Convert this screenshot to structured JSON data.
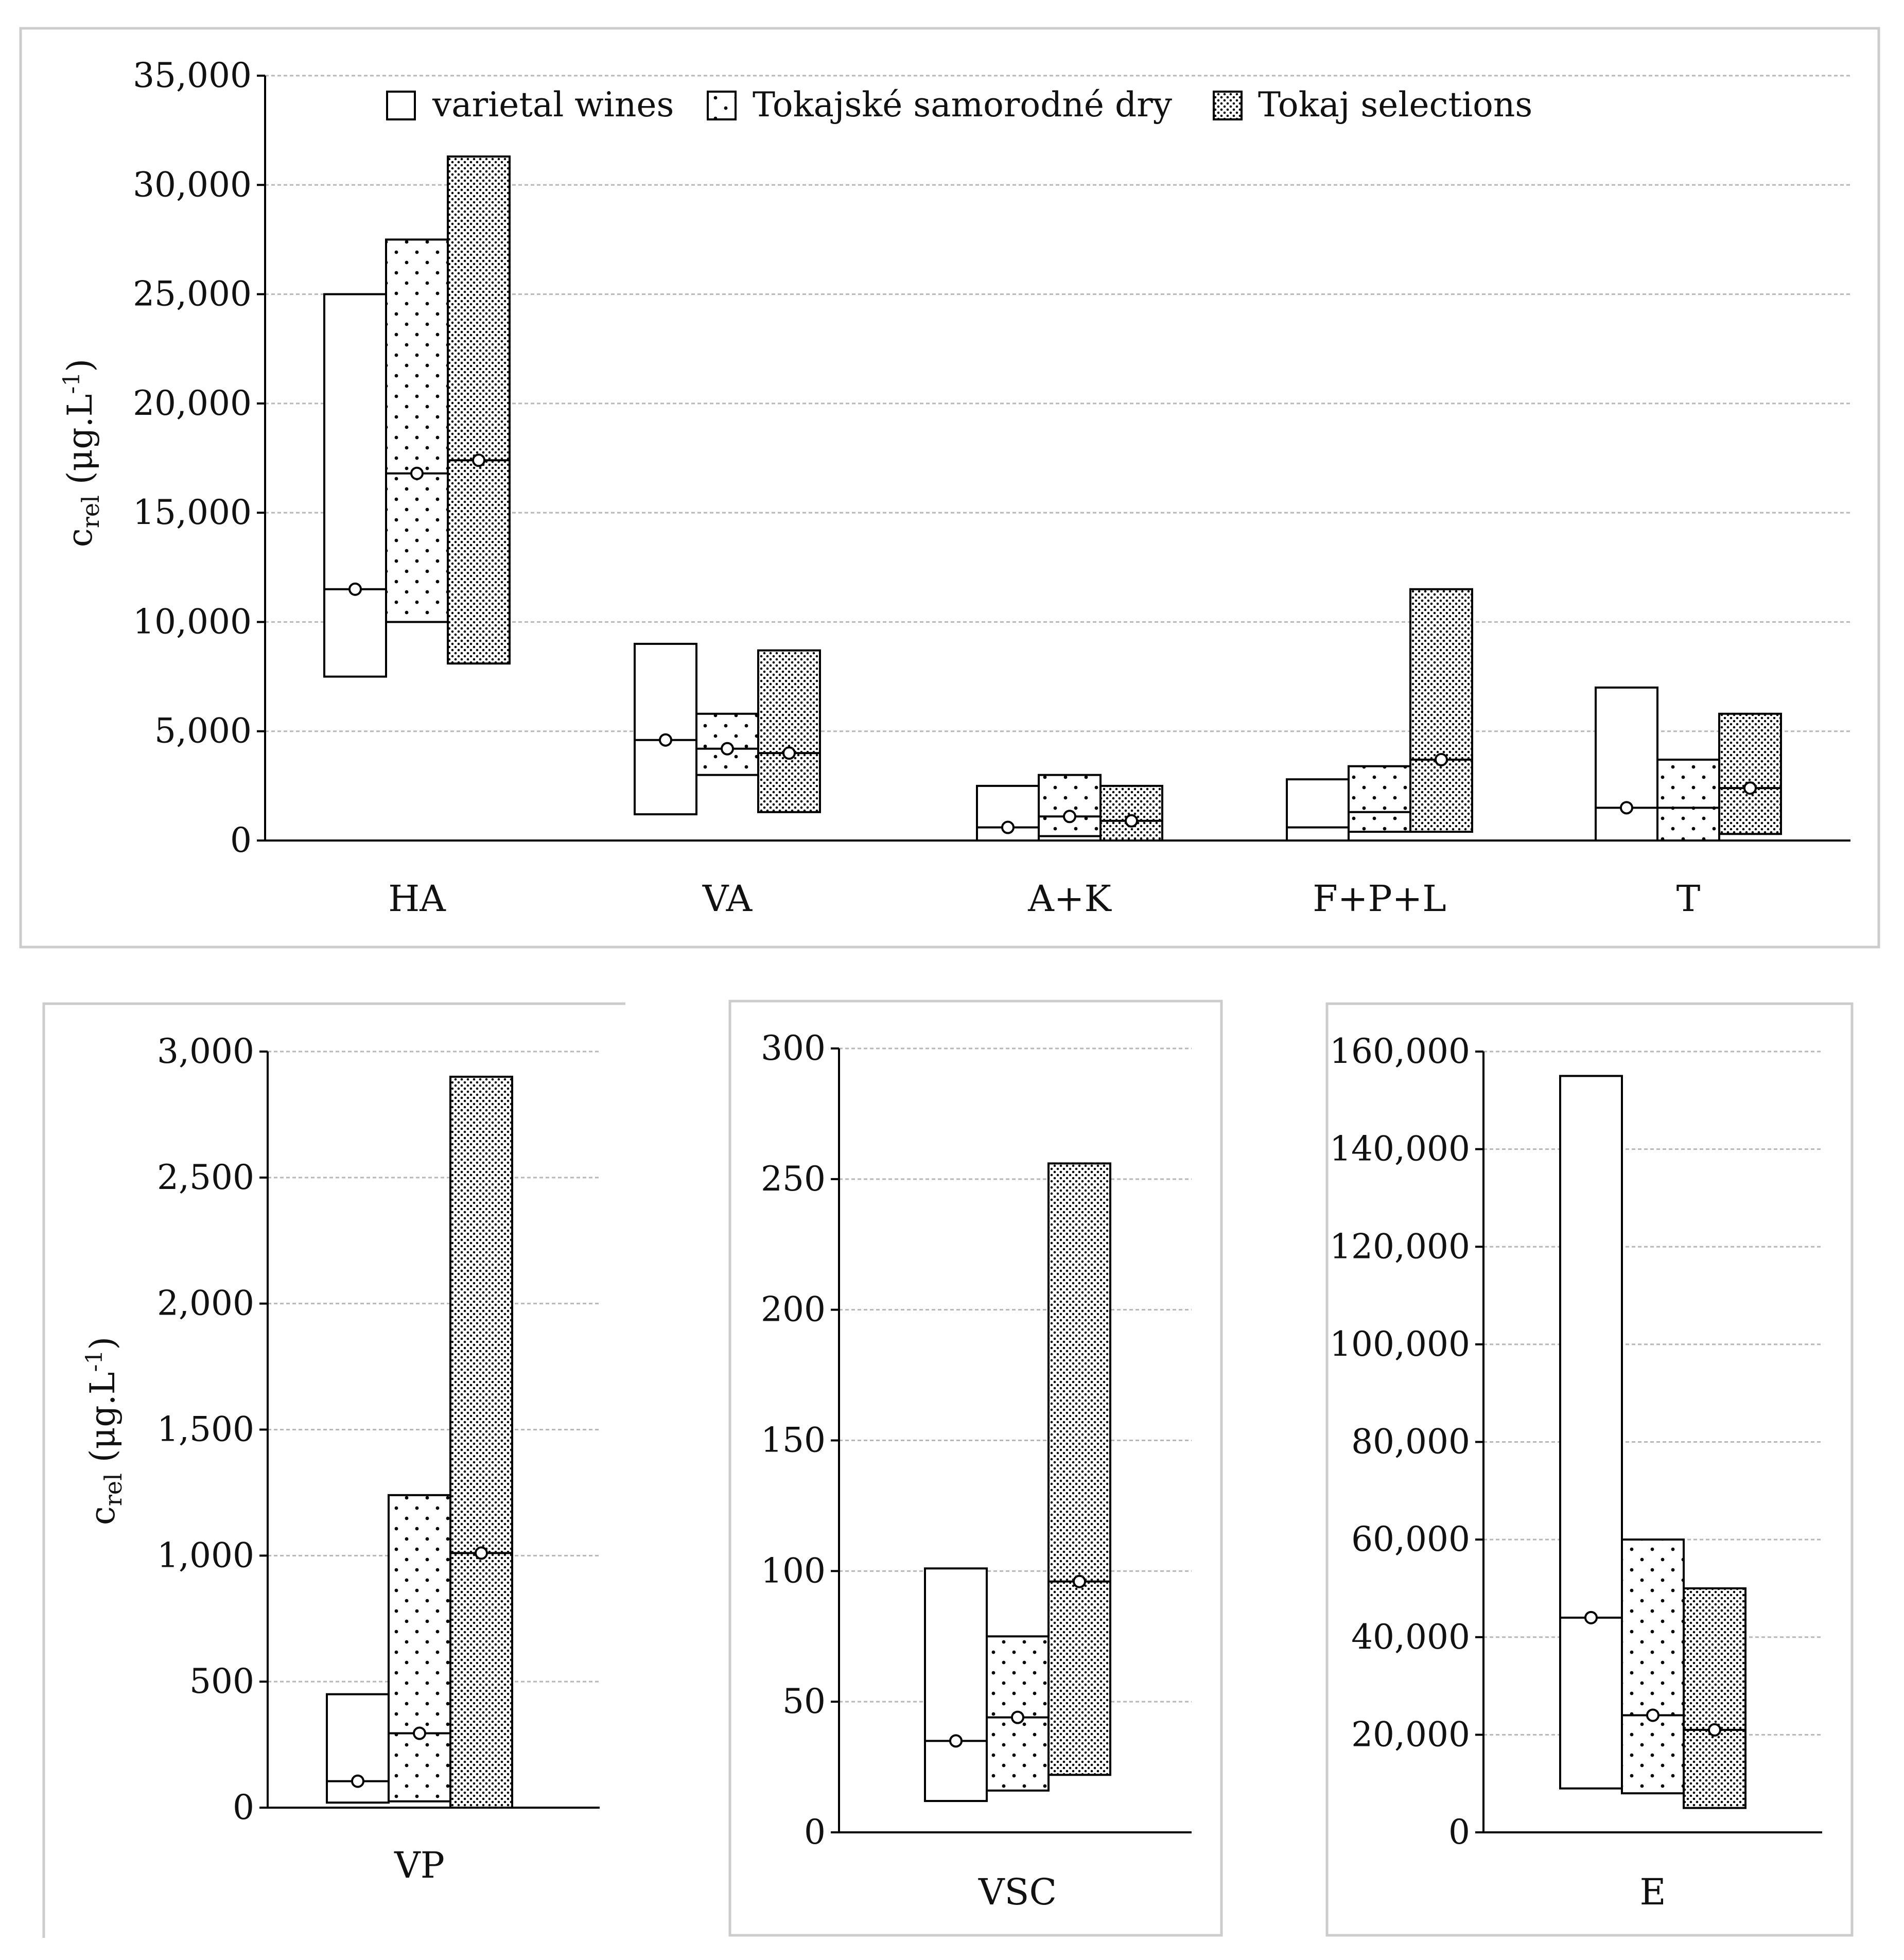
{
  "legend": {
    "items": [
      {
        "label": "varietal wines",
        "pattern": "none"
      },
      {
        "label": "Tokajské samorodné dry",
        "pattern": "dots-sparse"
      },
      {
        "label": "Tokaj selections",
        "pattern": "dots-dense"
      }
    ]
  },
  "y_axis_label": {
    "base": "c",
    "subscript": "rel",
    "unit_open": " (μg.L",
    "superscript": "-1",
    "unit_close": ")"
  },
  "colors": {
    "stroke": "#000000",
    "grid": "#b8b8b8",
    "panel_border": "#cccccc",
    "background": "#ffffff"
  },
  "chart_data": [
    {
      "type": "floating-bar",
      "title": "",
      "xlabel": "",
      "ylabel": "c_rel (μg.L-1)",
      "ylim": [
        0,
        35000
      ],
      "yticks": [
        0,
        5000,
        10000,
        15000,
        20000,
        25000,
        30000,
        35000
      ],
      "ytick_labels": [
        "0",
        "5,000",
        "10,000",
        "15,000",
        "20,000",
        "25,000",
        "30,000",
        "35,000"
      ],
      "grid": true,
      "legend": "top",
      "series_names": [
        "varietal wines",
        "Tokajské samorodné dry",
        "Tokaj selections"
      ],
      "categories": [
        {
          "label": "HA",
          "bars": [
            {
              "series": "varietal wines",
              "min": 7500,
              "max": 25000,
              "median": 11500,
              "mean": 11500
            },
            {
              "series": "Tokajské samorodné dry",
              "min": 10000,
              "max": 27500,
              "median": 16800,
              "mean": 16800
            },
            {
              "series": "Tokaj selections",
              "min": 8100,
              "max": 31300,
              "median": 17400,
              "mean": 17400
            }
          ]
        },
        {
          "label": "VA",
          "bars": [
            {
              "series": "varietal wines",
              "min": 1200,
              "max": 9000,
              "median": 4600,
              "mean": 4600
            },
            {
              "series": "Tokajské samorodné dry",
              "min": 3000,
              "max": 5800,
              "median": 4200,
              "mean": 4200
            },
            {
              "series": "Tokaj selections",
              "min": 1300,
              "max": 8700,
              "median": 4000,
              "mean": 4000
            }
          ]
        },
        {
          "label": "A+K",
          "bars": [
            {
              "series": "varietal wines",
              "min": 0,
              "max": 2500,
              "median": 600,
              "mean": 600
            },
            {
              "series": "Tokajské samorodné dry",
              "min": 200,
              "max": 3000,
              "median": 1100,
              "mean": 1100
            },
            {
              "series": "Tokaj selections",
              "min": 0,
              "max": 2500,
              "median": 900,
              "mean": 900
            }
          ]
        },
        {
          "label": "F+P+L",
          "bars": [
            {
              "series": "varietal wines",
              "min": 0,
              "max": 2800,
              "median": 600,
              "mean": null
            },
            {
              "series": "Tokajské samorodné dry",
              "min": 400,
              "max": 3400,
              "median": 1300,
              "mean": null
            },
            {
              "series": "Tokaj selections",
              "min": 400,
              "max": 11500,
              "median": 3700,
              "mean": 3700
            }
          ]
        },
        {
          "label": "T",
          "bars": [
            {
              "series": "varietal wines",
              "min": 0,
              "max": 7000,
              "median": 1500,
              "mean": 1500
            },
            {
              "series": "Tokajské samorodné dry",
              "min": 0,
              "max": 3700,
              "median": 1500,
              "mean": null
            },
            {
              "series": "Tokaj selections",
              "min": 300,
              "max": 5800,
              "median": 2400,
              "mean": 2400
            }
          ]
        }
      ]
    },
    {
      "type": "floating-bar",
      "title": "",
      "xlabel": "",
      "ylabel": "c_rel (μg.L-1)",
      "ylim": [
        0,
        3000
      ],
      "yticks": [
        0,
        500,
        1000,
        1500,
        2000,
        2500,
        3000
      ],
      "ytick_labels": [
        "0",
        "500",
        "1,000",
        "1,500",
        "2,000",
        "2,500",
        "3,000"
      ],
      "grid": true,
      "legend": "none",
      "series_names": [
        "varietal wines",
        "Tokajské samorodné dry",
        "Tokaj selections"
      ],
      "categories": [
        {
          "label": "VP",
          "bars": [
            {
              "series": "varietal wines",
              "min": 20,
              "max": 450,
              "median": 105,
              "mean": 105
            },
            {
              "series": "Tokajské samorodné dry",
              "min": 25,
              "max": 1240,
              "median": 295,
              "mean": 295
            },
            {
              "series": "Tokaj selections",
              "min": 0,
              "max": 2900,
              "median": 1010,
              "mean": 1010
            }
          ]
        }
      ]
    },
    {
      "type": "floating-bar",
      "title": "",
      "xlabel": "",
      "ylabel": "",
      "ylim": [
        0,
        300
      ],
      "yticks": [
        0,
        50,
        100,
        150,
        200,
        250,
        300
      ],
      "ytick_labels": [
        "0",
        "50",
        "100",
        "150",
        "200",
        "250",
        "300"
      ],
      "grid": true,
      "legend": "none",
      "series_names": [
        "varietal wines",
        "Tokajské samorodné dry",
        "Tokaj selections"
      ],
      "categories": [
        {
          "label": "VSC",
          "bars": [
            {
              "series": "varietal wines",
              "min": 12,
              "max": 101,
              "median": 35,
              "mean": 35
            },
            {
              "series": "Tokajské samorodné dry",
              "min": 16,
              "max": 75,
              "median": 44,
              "mean": 44
            },
            {
              "series": "Tokaj selections",
              "min": 22,
              "max": 256,
              "median": 96,
              "mean": 96
            }
          ]
        }
      ]
    },
    {
      "type": "floating-bar",
      "title": "",
      "xlabel": "",
      "ylabel": "",
      "ylim": [
        0,
        160000
      ],
      "yticks": [
        0,
        20000,
        40000,
        60000,
        80000,
        100000,
        120000,
        140000,
        160000
      ],
      "ytick_labels": [
        "0",
        "20,000",
        "40,000",
        "60,000",
        "80,000",
        "100,000",
        "120,000",
        "140,000",
        "160,000"
      ],
      "grid": true,
      "legend": "none",
      "series_names": [
        "varietal wines",
        "Tokajské samorodné dry",
        "Tokaj selections"
      ],
      "categories": [
        {
          "label": "E",
          "bars": [
            {
              "series": "varietal wines",
              "min": 9000,
              "max": 155000,
              "median": 44000,
              "mean": 44000
            },
            {
              "series": "Tokajské samorodné dry",
              "min": 8000,
              "max": 60000,
              "median": 24000,
              "mean": 24000
            },
            {
              "series": "Tokaj selections",
              "min": 5000,
              "max": 50000,
              "median": 21000,
              "mean": 21000
            }
          ]
        }
      ]
    }
  ]
}
